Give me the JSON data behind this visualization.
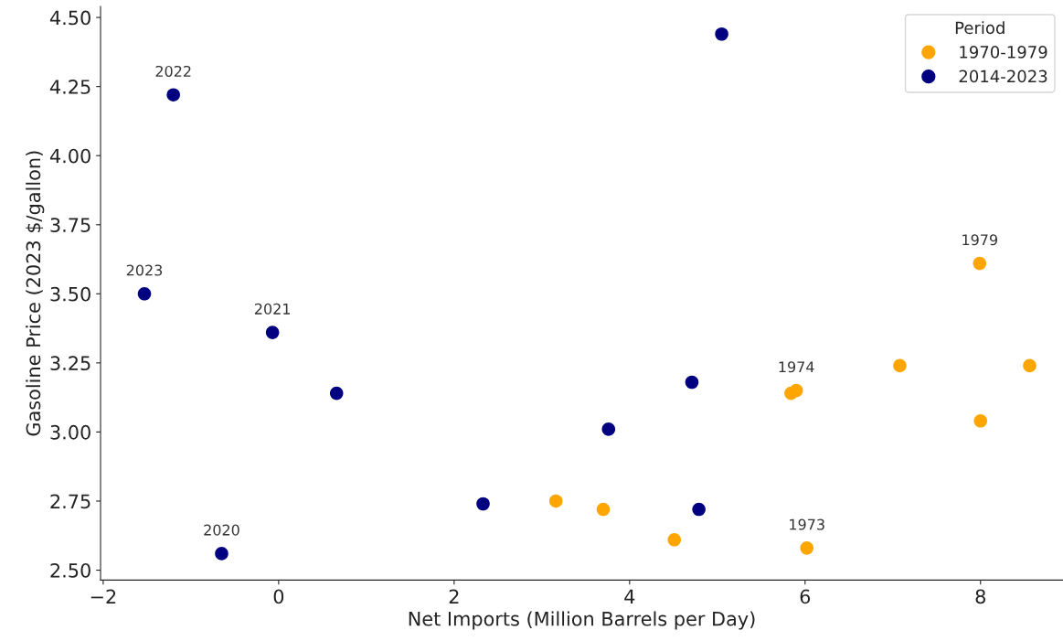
{
  "chart_data": {
    "type": "scatter",
    "xlabel": "Net Imports (Million Barrels per Day)",
    "ylabel": "Gasoline Price (2023 $/gallon)",
    "legend_title": "Period",
    "legend": "top right",
    "grid": false,
    "marker": "circle",
    "xlim": [
      -2.03,
      8.94
    ],
    "xticks": [
      {
        "value": -2,
        "label": "−2"
      },
      0,
      2,
      4,
      6,
      8
    ],
    "ylim": [
      2.464,
      4.54
    ],
    "yticks": [
      {
        "value": 2.5,
        "label": "2.50"
      },
      {
        "value": 2.75,
        "label": "2.75"
      },
      {
        "value": 3.0,
        "label": "3.00"
      },
      {
        "value": 3.25,
        "label": "3.25"
      },
      {
        "value": 3.5,
        "label": "3.50"
      },
      {
        "value": 3.75,
        "label": "3.75"
      },
      {
        "value": 4.0,
        "label": "4.00"
      },
      {
        "value": 4.25,
        "label": "4.25"
      },
      {
        "value": 4.5,
        "label": "4.50"
      }
    ],
    "series": [
      {
        "name": "1970-1979",
        "color": "#ffa500",
        "x": [
          3.16,
          3.7,
          4.51,
          5.84,
          5.9,
          6.02,
          7.08,
          7.99,
          8.0,
          8.56
        ],
        "values": [
          2.75,
          2.72,
          2.61,
          3.14,
          3.15,
          2.58,
          3.24,
          3.61,
          3.04,
          3.24
        ]
      },
      {
        "name": "2014-2023",
        "color": "#000080",
        "x": [
          -1.2,
          -1.53,
          -0.07,
          0.66,
          -0.65,
          2.33,
          3.76,
          4.71,
          4.79,
          5.05
        ],
        "values": [
          4.22,
          3.5,
          3.36,
          3.14,
          2.56,
          2.74,
          3.01,
          3.18,
          2.72,
          4.44
        ]
      }
    ],
    "annotations": [
      {
        "text": "2022",
        "x": -1.2,
        "y": 4.22
      },
      {
        "text": "2023",
        "x": -1.53,
        "y": 3.5
      },
      {
        "text": "2021",
        "x": -0.07,
        "y": 3.36
      },
      {
        "text": "2020",
        "x": -0.65,
        "y": 2.56
      },
      {
        "text": "1979",
        "x": 7.99,
        "y": 3.61
      },
      {
        "text": "1974",
        "x": 5.9,
        "y": 3.15
      },
      {
        "text": "1973",
        "x": 6.02,
        "y": 2.58
      }
    ]
  }
}
